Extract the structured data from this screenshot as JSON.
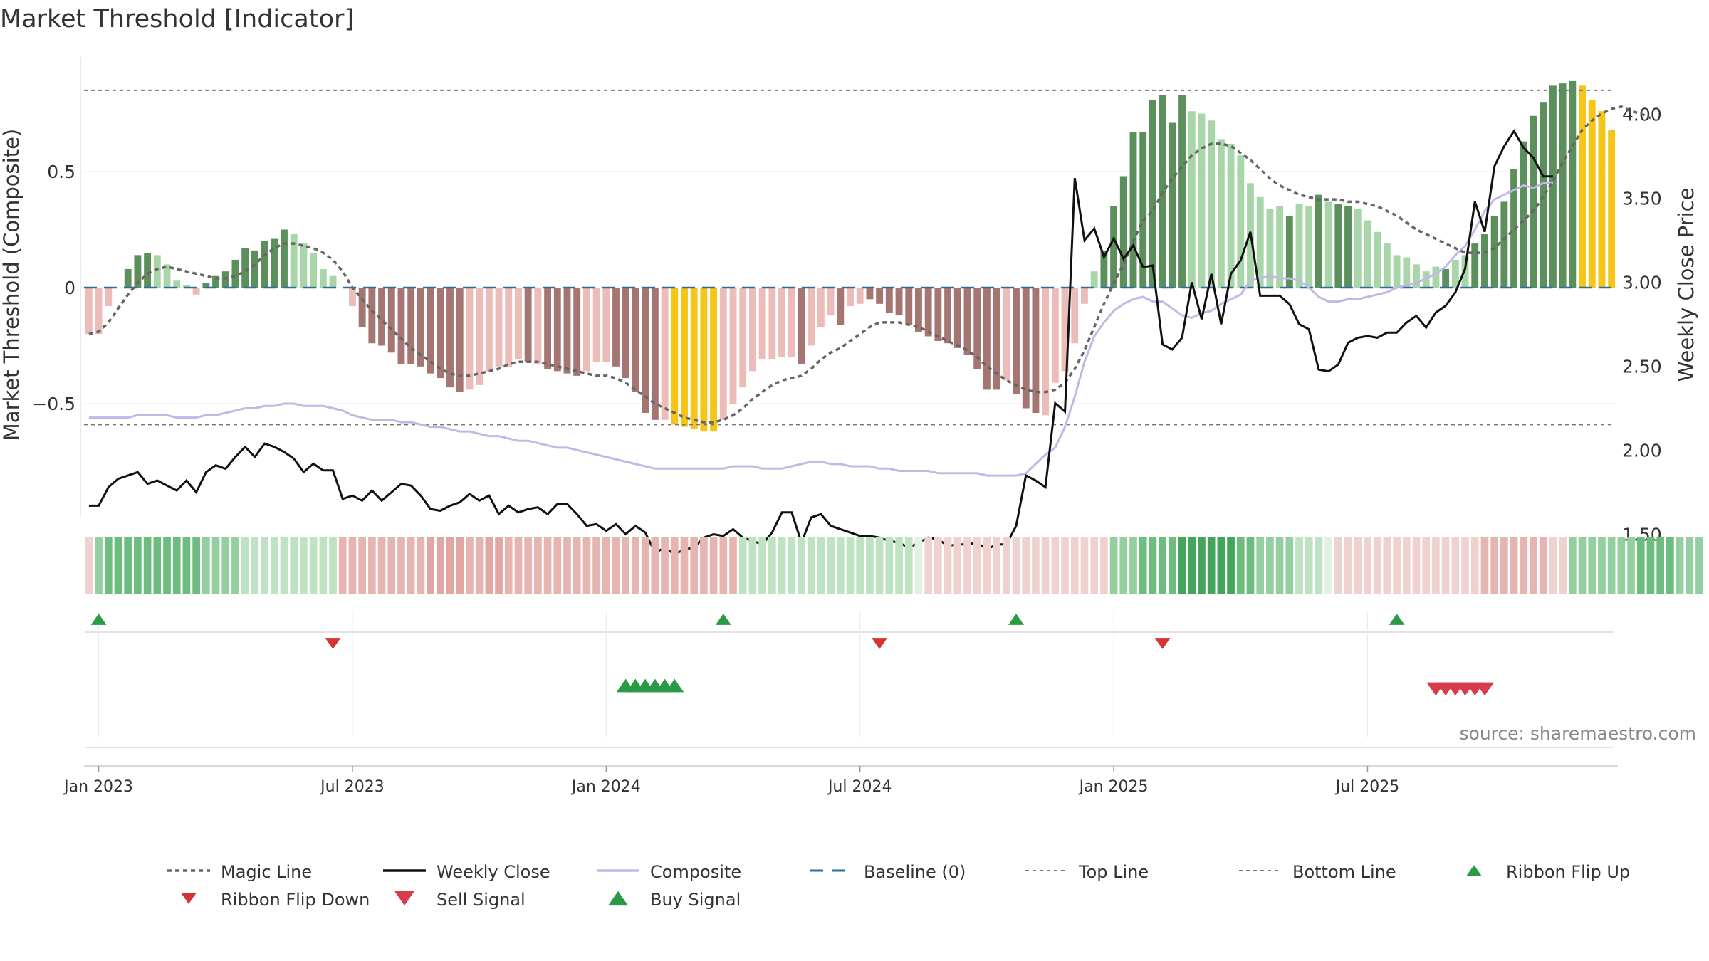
{
  "chart_data": {
    "type": "bar",
    "title": "Market Threshold [Indicator]",
    "ylabel": "Market Threshold (Composite)",
    "y2label": "Weekly Close Price",
    "source": "source: sharemaestro.com",
    "ylim": [
      -1.0,
      1.0
    ],
    "y2lim": [
      1.3,
      4.0
    ],
    "yticks": [
      {
        "v": 0.5,
        "label": "0.5"
      },
      {
        "v": 0,
        "label": "0"
      },
      {
        "v": -0.5,
        "label": "−0.5"
      }
    ],
    "y2ticks": [
      {
        "v": 4.0,
        "label": "4.00"
      },
      {
        "v": 3.5,
        "label": "3.50"
      },
      {
        "v": 3.0,
        "label": "3.00"
      },
      {
        "v": 2.5,
        "label": "2.50"
      },
      {
        "v": 2.0,
        "label": "2.00"
      },
      {
        "v": 1.5,
        "label": "1.50"
      }
    ],
    "xticks": [
      {
        "i": 1,
        "label": "Jan 2023"
      },
      {
        "i": 27,
        "label": "Jul 2023"
      },
      {
        "i": 53,
        "label": "Jan 2024"
      },
      {
        "i": 79,
        "label": "Jul 2024"
      },
      {
        "i": 105,
        "label": "Jan 2025"
      },
      {
        "i": 131,
        "label": "Jul 2025"
      }
    ],
    "top_line": 0.85,
    "bottom_line": -0.59,
    "baseline": 0,
    "legend_position": "bottom",
    "colors": {
      "strong_pos": "#5b8f5b",
      "weak_pos": "#a9d6a9",
      "strong_neg": "#a57572",
      "weak_neg": "#ecbdb8",
      "extreme": "#f5c518",
      "weekly_close": "#111111",
      "composite": "#c2b8e6",
      "magic": "#666666",
      "baseline": "#2c6e9e",
      "buy": "#2a9a47",
      "sell": "#d83c4a",
      "flip_up": "#2a9a47",
      "flip_down": "#d33535"
    },
    "bar_values": [
      -0.2,
      -0.2,
      -0.08,
      0,
      0.08,
      0.14,
      0.15,
      0.14,
      0.1,
      0.03,
      0.01,
      -0.03,
      0.02,
      0.05,
      0.07,
      0.12,
      0.17,
      0.16,
      0.2,
      0.21,
      0.25,
      0.23,
      0.19,
      0.15,
      0.08,
      0.05,
      0,
      -0.08,
      -0.17,
      -0.24,
      -0.25,
      -0.28,
      -0.33,
      -0.33,
      -0.34,
      -0.37,
      -0.39,
      -0.43,
      -0.45,
      -0.44,
      -0.42,
      -0.36,
      -0.34,
      -0.34,
      -0.31,
      -0.32,
      -0.33,
      -0.35,
      -0.36,
      -0.37,
      -0.38,
      -0.36,
      -0.32,
      -0.32,
      -0.34,
      -0.39,
      -0.45,
      -0.54,
      -0.57,
      -0.57,
      -0.59,
      -0.6,
      -0.61,
      -0.62,
      -0.62,
      -0.57,
      -0.5,
      -0.43,
      -0.36,
      -0.31,
      -0.31,
      -0.3,
      -0.3,
      -0.33,
      -0.25,
      -0.17,
      -0.12,
      -0.16,
      -0.08,
      -0.07,
      -0.05,
      -0.07,
      -0.11,
      -0.12,
      -0.16,
      -0.19,
      -0.21,
      -0.23,
      -0.24,
      -0.26,
      -0.29,
      -0.35,
      -0.44,
      -0.44,
      -0.4,
      -0.46,
      -0.52,
      -0.54,
      -0.55,
      -0.41,
      -0.36,
      -0.24,
      -0.07,
      0.07,
      0.16,
      0.35,
      0.48,
      0.67,
      0.67,
      0.81,
      0.83,
      0.71,
      0.83,
      0.76,
      0.75,
      0.72,
      0.64,
      0.62,
      0.57,
      0.45,
      0.39,
      0.34,
      0.35,
      0.31,
      0.36,
      0.35,
      0.4,
      0.37,
      0.36,
      0.35,
      0.34,
      0.29,
      0.24,
      0.19,
      0.14,
      0.13,
      0.1,
      0.07,
      0.09,
      0.08,
      0.12,
      0.14,
      0.19,
      0.23,
      0.31,
      0.37,
      0.51,
      0.63,
      0.74,
      0.8,
      0.87,
      0.88,
      0.89,
      0.87,
      0.81,
      0.76,
      0.68
    ],
    "bar_kinds": [
      "wn",
      "wn",
      "wn",
      "wp",
      "sp",
      "sp",
      "sp",
      "wp",
      "wp",
      "wp",
      "wp",
      "wn",
      "sp",
      "sp",
      "sp",
      "sp",
      "sp",
      "sp",
      "sp",
      "sp",
      "sp",
      "wp",
      "wp",
      "wp",
      "wp",
      "wp",
      "wn",
      "wn",
      "sn",
      "sn",
      "sn",
      "sn",
      "sn",
      "sn",
      "sn",
      "sn",
      "sn",
      "sn",
      "sn",
      "wn",
      "wn",
      "wn",
      "wn",
      "wn",
      "wn",
      "sn",
      "wn",
      "sn",
      "sn",
      "sn",
      "sn",
      "wn",
      "wn",
      "wn",
      "sn",
      "sn",
      "sn",
      "sn",
      "sn",
      "wn",
      "ex",
      "ex",
      "ex",
      "ex",
      "ex",
      "wn",
      "wn",
      "wn",
      "wn",
      "wn",
      "wn",
      "wn",
      "wn",
      "sn",
      "wn",
      "wn",
      "wn",
      "sn",
      "wn",
      "wn",
      "sn",
      "sn",
      "sn",
      "sn",
      "sn",
      "sn",
      "sn",
      "sn",
      "sn",
      "sn",
      "sn",
      "sn",
      "sn",
      "sn",
      "wn",
      "sn",
      "sn",
      "sn",
      "wn",
      "wn",
      "wn",
      "wn",
      "wn",
      "wp",
      "sp",
      "sp",
      "sp",
      "sp",
      "sp",
      "sp",
      "sp",
      "sp",
      "sp",
      "wp",
      "wp",
      "wp",
      "wp",
      "wp",
      "wp",
      "wp",
      "wp",
      "wp",
      "wp",
      "sp",
      "wp",
      "wp",
      "sp",
      "wp",
      "sp",
      "sp",
      "wp",
      "wp",
      "wp",
      "wp",
      "wp",
      "wp",
      "wp",
      "wp",
      "wp",
      "sp",
      "wp",
      "wp",
      "sp",
      "sp",
      "sp",
      "sp",
      "sp",
      "sp",
      "sp",
      "sp",
      "sp",
      "sp",
      "sp",
      "ex",
      "ex",
      "ex",
      "ex",
      "ex",
      "ex",
      "wp",
      "wp"
    ],
    "magic_line": [
      -0.2,
      -0.19,
      -0.15,
      -0.09,
      -0.03,
      0.02,
      0.06,
      0.08,
      0.09,
      0.08,
      0.07,
      0.06,
      0.05,
      0.04,
      0.04,
      0.05,
      0.07,
      0.1,
      0.14,
      0.17,
      0.19,
      0.19,
      0.18,
      0.17,
      0.15,
      0.12,
      0.07,
      0.0,
      -0.05,
      -0.1,
      -0.14,
      -0.18,
      -0.22,
      -0.26,
      -0.29,
      -0.32,
      -0.35,
      -0.37,
      -0.38,
      -0.38,
      -0.37,
      -0.36,
      -0.35,
      -0.33,
      -0.32,
      -0.32,
      -0.32,
      -0.33,
      -0.34,
      -0.35,
      -0.36,
      -0.37,
      -0.38,
      -0.38,
      -0.39,
      -0.41,
      -0.44,
      -0.47,
      -0.5,
      -0.52,
      -0.54,
      -0.56,
      -0.57,
      -0.58,
      -0.58,
      -0.57,
      -0.55,
      -0.52,
      -0.48,
      -0.45,
      -0.42,
      -0.4,
      -0.39,
      -0.38,
      -0.35,
      -0.31,
      -0.28,
      -0.26,
      -0.23,
      -0.2,
      -0.17,
      -0.15,
      -0.15,
      -0.15,
      -0.16,
      -0.17,
      -0.19,
      -0.21,
      -0.23,
      -0.25,
      -0.27,
      -0.3,
      -0.34,
      -0.37,
      -0.4,
      -0.42,
      -0.44,
      -0.45,
      -0.45,
      -0.44,
      -0.41,
      -0.35,
      -0.27,
      -0.17,
      -0.07,
      0.02,
      0.1,
      0.2,
      0.29,
      0.33,
      0.41,
      0.47,
      0.52,
      0.57,
      0.6,
      0.62,
      0.62,
      0.61,
      0.58,
      0.55,
      0.51,
      0.47,
      0.44,
      0.42,
      0.4,
      0.39,
      0.38,
      0.38,
      0.38,
      0.37,
      0.37,
      0.36,
      0.35,
      0.33,
      0.31,
      0.28,
      0.25,
      0.23,
      0.21,
      0.19,
      0.17,
      0.15,
      0.15,
      0.15,
      0.17,
      0.21,
      0.25,
      0.29,
      0.33,
      0.39,
      0.46,
      0.54,
      0.61,
      0.68,
      0.72,
      0.75,
      0.77,
      0.78,
      0.76,
      0.75,
      0.73
    ],
    "weekly_close": [
      1.67,
      1.67,
      1.78,
      1.83,
      1.85,
      1.87,
      1.8,
      1.82,
      1.79,
      1.76,
      1.82,
      1.75,
      1.87,
      1.91,
      1.89,
      1.96,
      2.02,
      1.96,
      2.04,
      2.02,
      1.99,
      1.95,
      1.87,
      1.92,
      1.88,
      1.88,
      1.71,
      1.73,
      1.7,
      1.76,
      1.7,
      1.75,
      1.8,
      1.79,
      1.73,
      1.65,
      1.64,
      1.67,
      1.69,
      1.74,
      1.7,
      1.73,
      1.62,
      1.67,
      1.63,
      1.65,
      1.66,
      1.62,
      1.68,
      1.68,
      1.62,
      1.55,
      1.56,
      1.52,
      1.56,
      1.5,
      1.55,
      1.51,
      1.39,
      1.42,
      1.38,
      1.41,
      1.42,
      1.48,
      1.5,
      1.49,
      1.53,
      1.48,
      1.46,
      1.44,
      1.51,
      1.63,
      1.63,
      1.45,
      1.6,
      1.62,
      1.55,
      1.53,
      1.51,
      1.49,
      1.49,
      1.48,
      1.46,
      1.45,
      1.42,
      1.45,
      1.48,
      1.47,
      1.43,
      1.44,
      1.44,
      1.45,
      1.41,
      1.44,
      1.44,
      1.55,
      1.85,
      1.82,
      1.78,
      2.28,
      2.23,
      3.62,
      3.25,
      3.32,
      3.15,
      3.26,
      3.14,
      3.22,
      3.09,
      3.1,
      2.63,
      2.6,
      2.67,
      3.0,
      2.78,
      3.05,
      2.75,
      3.05,
      3.13,
      3.3,
      2.92,
      2.92,
      2.92,
      2.87,
      2.75,
      2.72,
      2.48,
      2.47,
      2.51,
      2.64,
      2.67,
      2.68,
      2.67,
      2.7,
      2.7,
      2.76,
      2.8,
      2.73,
      2.82,
      2.86,
      2.94,
      3.08,
      3.48,
      3.3,
      3.69,
      3.81,
      3.9,
      3.8,
      3.74,
      3.63,
      3.63
    ],
    "composite": [
      -0.56,
      -0.56,
      -0.56,
      -0.56,
      -0.56,
      -0.55,
      -0.55,
      -0.55,
      -0.55,
      -0.56,
      -0.56,
      -0.56,
      -0.55,
      -0.55,
      -0.54,
      -0.53,
      -0.52,
      -0.52,
      -0.51,
      -0.51,
      -0.5,
      -0.5,
      -0.51,
      -0.51,
      -0.51,
      -0.52,
      -0.53,
      -0.55,
      -0.56,
      -0.57,
      -0.57,
      -0.57,
      -0.58,
      -0.58,
      -0.59,
      -0.6,
      -0.6,
      -0.61,
      -0.62,
      -0.62,
      -0.63,
      -0.64,
      -0.64,
      -0.65,
      -0.66,
      -0.66,
      -0.67,
      -0.68,
      -0.69,
      -0.69,
      -0.7,
      -0.71,
      -0.72,
      -0.73,
      -0.74,
      -0.75,
      -0.76,
      -0.77,
      -0.78,
      -0.78,
      -0.78,
      -0.78,
      -0.78,
      -0.78,
      -0.78,
      -0.78,
      -0.77,
      -0.77,
      -0.77,
      -0.78,
      -0.78,
      -0.78,
      -0.77,
      -0.76,
      -0.75,
      -0.75,
      -0.76,
      -0.76,
      -0.77,
      -0.77,
      -0.77,
      -0.78,
      -0.78,
      -0.79,
      -0.79,
      -0.79,
      -0.79,
      -0.8,
      -0.8,
      -0.8,
      -0.8,
      -0.8,
      -0.81,
      -0.81,
      -0.81,
      -0.81,
      -0.8,
      -0.76,
      -0.72,
      -0.69,
      -0.6,
      -0.47,
      -0.32,
      -0.21,
      -0.15,
      -0.1,
      -0.07,
      -0.05,
      -0.04,
      -0.06,
      -0.06,
      -0.09,
      -0.12,
      -0.13,
      -0.11,
      -0.1,
      -0.07,
      -0.05,
      -0.03,
      0.03,
      0.04,
      0.05,
      0.04,
      0.04,
      0.03,
      0.0,
      -0.04,
      -0.06,
      -0.06,
      -0.05,
      -0.05,
      -0.04,
      -0.03,
      -0.02,
      0.0,
      0.01,
      0.02,
      0.04,
      0.06,
      0.09,
      0.14,
      0.18,
      0.25,
      0.33,
      0.38,
      0.4,
      0.42,
      0.44,
      0.43,
      0.45,
      0.45
    ],
    "ribbon_kinds": [
      6,
      3,
      2,
      2,
      2,
      2,
      2,
      2,
      2,
      2,
      2,
      2,
      3,
      3,
      3,
      3,
      4,
      4,
      4,
      4,
      4,
      4,
      4,
      4,
      4,
      4,
      7,
      7,
      7,
      7,
      7,
      7,
      7,
      7,
      7,
      8,
      8,
      8,
      8,
      7,
      7,
      8,
      8,
      7,
      7,
      7,
      7,
      7,
      7,
      7,
      7,
      7,
      7,
      7,
      7,
      7,
      7,
      7,
      7,
      7,
      7,
      7,
      7,
      7,
      7,
      7,
      7,
      4,
      4,
      4,
      4,
      4,
      4,
      4,
      4,
      4,
      4,
      4,
      4,
      4,
      4,
      4,
      4,
      4,
      4,
      5,
      6,
      6,
      6,
      6,
      6,
      6,
      6,
      6,
      6,
      6,
      6,
      6,
      6,
      6,
      6,
      6,
      6,
      6,
      6,
      3,
      3,
      3,
      2,
      2,
      2,
      2,
      1,
      1,
      1,
      1,
      1,
      1,
      2,
      2,
      3,
      3,
      3,
      3,
      4,
      4,
      4,
      5,
      6,
      6,
      6,
      6,
      6,
      6,
      6,
      6,
      6,
      6,
      6,
      6,
      6,
      6,
      6,
      7,
      7,
      7,
      7,
      7,
      7,
      7,
      6,
      6,
      3,
      3,
      3,
      3,
      3,
      3,
      3,
      2,
      2,
      2,
      2,
      3,
      3,
      3
    ],
    "ribbon_flip_up": [
      1,
      65,
      95,
      134
    ],
    "ribbon_flip_down": [
      25,
      81,
      110
    ],
    "buy_signal": [
      55,
      56,
      57,
      58,
      59,
      60
    ],
    "sell_signal": [
      138,
      139,
      140,
      141,
      142,
      143
    ],
    "legend": [
      {
        "key": "magic",
        "label": "Magic Line"
      },
      {
        "key": "close",
        "label": "Weekly Close"
      },
      {
        "key": "composite",
        "label": "Composite"
      },
      {
        "key": "baseline",
        "label": "Baseline (0)"
      },
      {
        "key": "top",
        "label": "Top Line"
      },
      {
        "key": "bottom",
        "label": "Bottom Line"
      },
      {
        "key": "flipup",
        "label": "Ribbon Flip Up"
      },
      {
        "key": "flipdown",
        "label": "Ribbon Flip Down"
      },
      {
        "key": "sell",
        "label": "Sell Signal"
      },
      {
        "key": "buy",
        "label": "Buy Signal"
      }
    ]
  }
}
